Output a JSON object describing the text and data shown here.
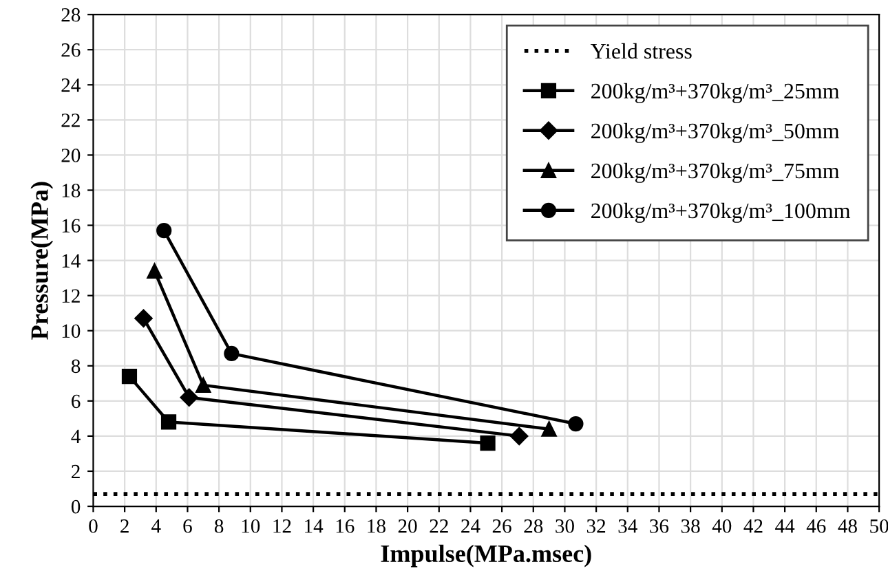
{
  "chart_data": {
    "type": "line",
    "xlabel": "Impulse(MPa.msec)",
    "ylabel": "Pressure(MPa)",
    "xlim": [
      0,
      50
    ],
    "ylim": [
      0,
      28
    ],
    "xticks": [
      0,
      2,
      4,
      6,
      8,
      10,
      12,
      14,
      16,
      18,
      20,
      22,
      24,
      26,
      28,
      30,
      32,
      34,
      36,
      38,
      40,
      42,
      44,
      46,
      48,
      50
    ],
    "yticks": [
      0,
      2,
      4,
      6,
      8,
      10,
      12,
      14,
      16,
      18,
      20,
      22,
      24,
      26,
      28
    ],
    "grid": true,
    "legend": "top right",
    "line_style": "solid",
    "ref_lines": [
      {
        "axis": "y",
        "value": 0.7,
        "label": "Yield stress",
        "color": "#000000",
        "line_style": "dotted"
      }
    ],
    "series": [
      {
        "name": "200kg/m³+370kg/m³_25mm",
        "color": "#000000",
        "marker": "square",
        "x": [
          2.3,
          4.8,
          25.1
        ],
        "values": [
          7.4,
          4.8,
          3.6
        ]
      },
      {
        "name": "200kg/m³+370kg/m³_50mm",
        "color": "#000000",
        "marker": "diamond",
        "x": [
          3.2,
          6.1,
          27.1
        ],
        "values": [
          10.7,
          6.2,
          4.0
        ]
      },
      {
        "name": "200kg/m³+370kg/m³_75mm",
        "color": "#000000",
        "marker": "triangle",
        "x": [
          3.9,
          7.0,
          29.0
        ],
        "values": [
          13.4,
          6.9,
          4.4
        ]
      },
      {
        "name": "200kg/m³+370kg/m³_100mm",
        "color": "#000000",
        "marker": "circle",
        "x": [
          4.5,
          8.8,
          30.7
        ],
        "values": [
          15.7,
          8.7,
          4.7
        ]
      }
    ]
  }
}
